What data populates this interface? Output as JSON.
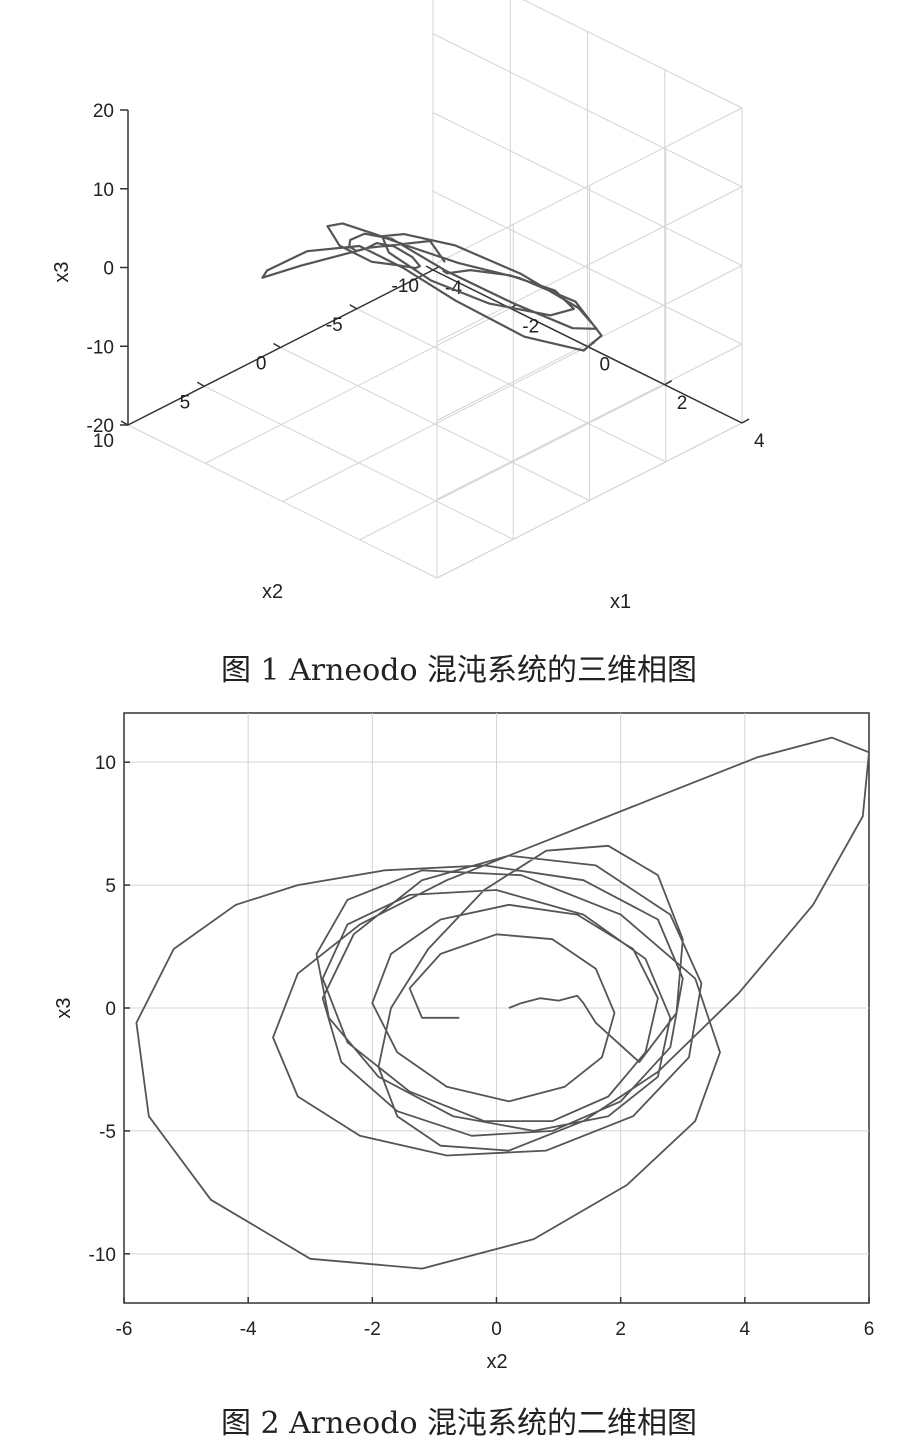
{
  "chart_data": [
    {
      "type": "line",
      "subtype": "3d-phase-portrait",
      "caption": "图 1 Arneodo 混沌系统的三维相图",
      "xlabel": "x1",
      "ylabel": "x2",
      "zlabel": "x3",
      "xlim": [
        -4,
        4
      ],
      "ylim": [
        -10,
        10
      ],
      "zlim": [
        -20,
        20
      ],
      "xticks": [
        "-4",
        "-2",
        "0",
        "2",
        "4"
      ],
      "yticks": [
        "-10",
        "-5",
        "0",
        "5",
        "10"
      ],
      "zticks": [
        "-20",
        "-10",
        "0",
        "10",
        "20"
      ],
      "grid": true,
      "line_color": "#555555",
      "series": [
        {
          "x1": [
            0.2,
            0.9,
            2.1,
            3.2,
            3.7,
            3.2,
            2.0,
            0.6,
            -0.3,
            -0.8,
            -0.5,
            0.3,
            1.5,
            2.7,
            3.4,
            3.2,
            2.3,
            1.0,
            -0.2,
            -1.2,
            -2.3,
            -3.3,
            -3.8,
            -3.3,
            -2.1,
            -0.8,
            0.2,
            0.6,
            0.2,
            -0.7,
            -1.8,
            -2.9,
            -3.5,
            -3.1,
            -2.0,
            -0.7,
            0.4,
            1.4,
            2.5,
            3.4,
            3.6,
            2.9,
            1.6,
            0.3,
            -0.7,
            -1.6,
            -2.6,
            -3.4,
            -3.6,
            -3.0,
            -1.8,
            -0.6,
            0.1
          ],
          "x2": [
            0.0,
            1.5,
            3.0,
            3.2,
            1.5,
            -1.0,
            -2.5,
            -2.0,
            -0.5,
            1.0,
            2.2,
            2.8,
            2.5,
            1.2,
            -0.8,
            -2.5,
            -3.2,
            -2.6,
            -1.2,
            -0.2,
            -1.2,
            -2.8,
            -4.0,
            -3.2,
            -0.8,
            1.8,
            3.2,
            3.0,
            1.5,
            -0.5,
            -2.2,
            -3.2,
            -2.6,
            -0.8,
            1.0,
            2.2,
            2.6,
            2.0,
            0.8,
            -0.6,
            -1.8,
            -2.4,
            -1.8,
            -0.6,
            0.3,
            0.9,
            1.8,
            2.4,
            2.2,
            1.2,
            -0.2,
            -1.2,
            -0.4
          ],
          "x3": [
            0.0,
            2.8,
            7.6,
            9.8,
            7.4,
            1.4,
            -3.8,
            -5.2,
            -3.0,
            0.8,
            4.8,
            7.6,
            8.8,
            6.8,
            2.2,
            -2.6,
            -5.4,
            -4.8,
            -2.2,
            0.4,
            -2.6,
            -7.4,
            -10.6,
            -9.2,
            -3.6,
            2.8,
            6.2,
            5.6,
            2.0,
            -2.4,
            -6.4,
            -9.6,
            -8.4,
            -3.2,
            1.6,
            4.6,
            6.0,
            5.8,
            5.4,
            3.2,
            -1.8,
            -6.0,
            -6.8,
            -4.2,
            -1.6,
            -0.4,
            -2.6,
            -6.4,
            -8.0,
            -6.0,
            -2.2,
            0.6,
            0.4
          ]
        }
      ]
    },
    {
      "type": "line",
      "subtype": "2d-phase-portrait",
      "caption": "图 2 Arneodo 混沌系统的二维相图",
      "xlabel": "x2",
      "ylabel": "x3",
      "xlim": [
        -6,
        6
      ],
      "ylim": [
        -12,
        12
      ],
      "xticks": [
        "-6",
        "-4",
        "-2",
        "0",
        "2",
        "4",
        "6"
      ],
      "yticks": [
        "-10",
        "-5",
        "0",
        "5",
        "10"
      ],
      "grid": true,
      "line_color": "#555555",
      "series": [
        {
          "x": [
            0.2,
            0.4,
            0.7,
            1.0,
            1.3,
            1.4,
            1.6,
            2.3,
            2.9,
            3.0,
            2.6,
            1.8,
            0.8,
            -0.2,
            -1.1,
            -1.7,
            -1.9,
            -1.6,
            -0.9,
            0.2,
            1.4,
            2.6,
            3.9,
            5.1,
            5.9,
            6.0,
            5.4,
            4.2,
            2.6,
            0.8,
            -0.8,
            -2.2,
            -3.2,
            -3.6,
            -3.2,
            -2.2,
            -0.8,
            0.8,
            2.2,
            3.1,
            3.3,
            2.8,
            1.6,
            0.2,
            -1.2,
            -2.3,
            -2.8,
            -2.5,
            -1.6,
            -0.4,
            0.9,
            2.0,
            2.8,
            3.0,
            2.6,
            1.4,
            -0.2,
            -1.8,
            -3.2,
            -4.2,
            -5.2,
            -5.8,
            -5.6,
            -4.6,
            -3.0,
            -1.2,
            0.6,
            2.1,
            3.2,
            3.6,
            3.2,
            2.0,
            0.4,
            -1.2,
            -2.4,
            -2.9,
            -2.7,
            -1.9,
            -0.7,
            0.6,
            1.8,
            2.6,
            2.8,
            2.4,
            1.4,
            0.0,
            -1.4,
            -2.4,
            -2.8,
            -2.4,
            -1.4,
            -0.2,
            0.9,
            1.8,
            2.4,
            2.6,
            2.2,
            1.3,
            0.2,
            -0.9,
            -1.7,
            -2.0,
            -1.6,
            -0.8,
            0.2,
            1.1,
            1.7,
            1.9,
            1.6,
            0.9,
            0.0,
            -0.9,
            -1.4,
            -1.2,
            -0.6
          ],
          "y": [
            0.0,
            0.2,
            0.4,
            0.3,
            0.5,
            0.2,
            -0.6,
            -2.2,
            -0.2,
            2.8,
            5.4,
            6.6,
            6.4,
            4.8,
            2.4,
            0.0,
            -2.4,
            -4.4,
            -5.6,
            -5.8,
            -4.6,
            -2.6,
            0.6,
            4.2,
            7.8,
            10.4,
            11.0,
            10.2,
            8.6,
            6.8,
            5.2,
            3.4,
            1.4,
            -1.2,
            -3.6,
            -5.2,
            -6.0,
            -5.8,
            -4.4,
            -2.0,
            1.0,
            3.8,
            5.8,
            6.2,
            5.2,
            3.0,
            0.4,
            -2.2,
            -4.2,
            -5.2,
            -5.0,
            -3.8,
            -1.6,
            1.2,
            3.6,
            5.2,
            5.8,
            5.6,
            5.0,
            4.2,
            2.4,
            -0.6,
            -4.4,
            -7.8,
            -10.2,
            -10.6,
            -9.4,
            -7.2,
            -4.6,
            -1.8,
            1.2,
            3.8,
            5.4,
            5.6,
            4.4,
            2.2,
            -0.4,
            -2.8,
            -4.4,
            -5.0,
            -4.4,
            -2.8,
            -0.4,
            2.0,
            3.8,
            4.8,
            4.6,
            3.4,
            1.2,
            -1.4,
            -3.4,
            -4.6,
            -4.6,
            -3.6,
            -1.8,
            0.4,
            2.4,
            3.8,
            4.2,
            3.6,
            2.2,
            0.2,
            -1.8,
            -3.2,
            -3.8,
            -3.2,
            -2.0,
            -0.2,
            1.6,
            2.8,
            3.0,
            2.2,
            0.8,
            -0.4,
            -0.4
          ]
        }
      ]
    }
  ]
}
